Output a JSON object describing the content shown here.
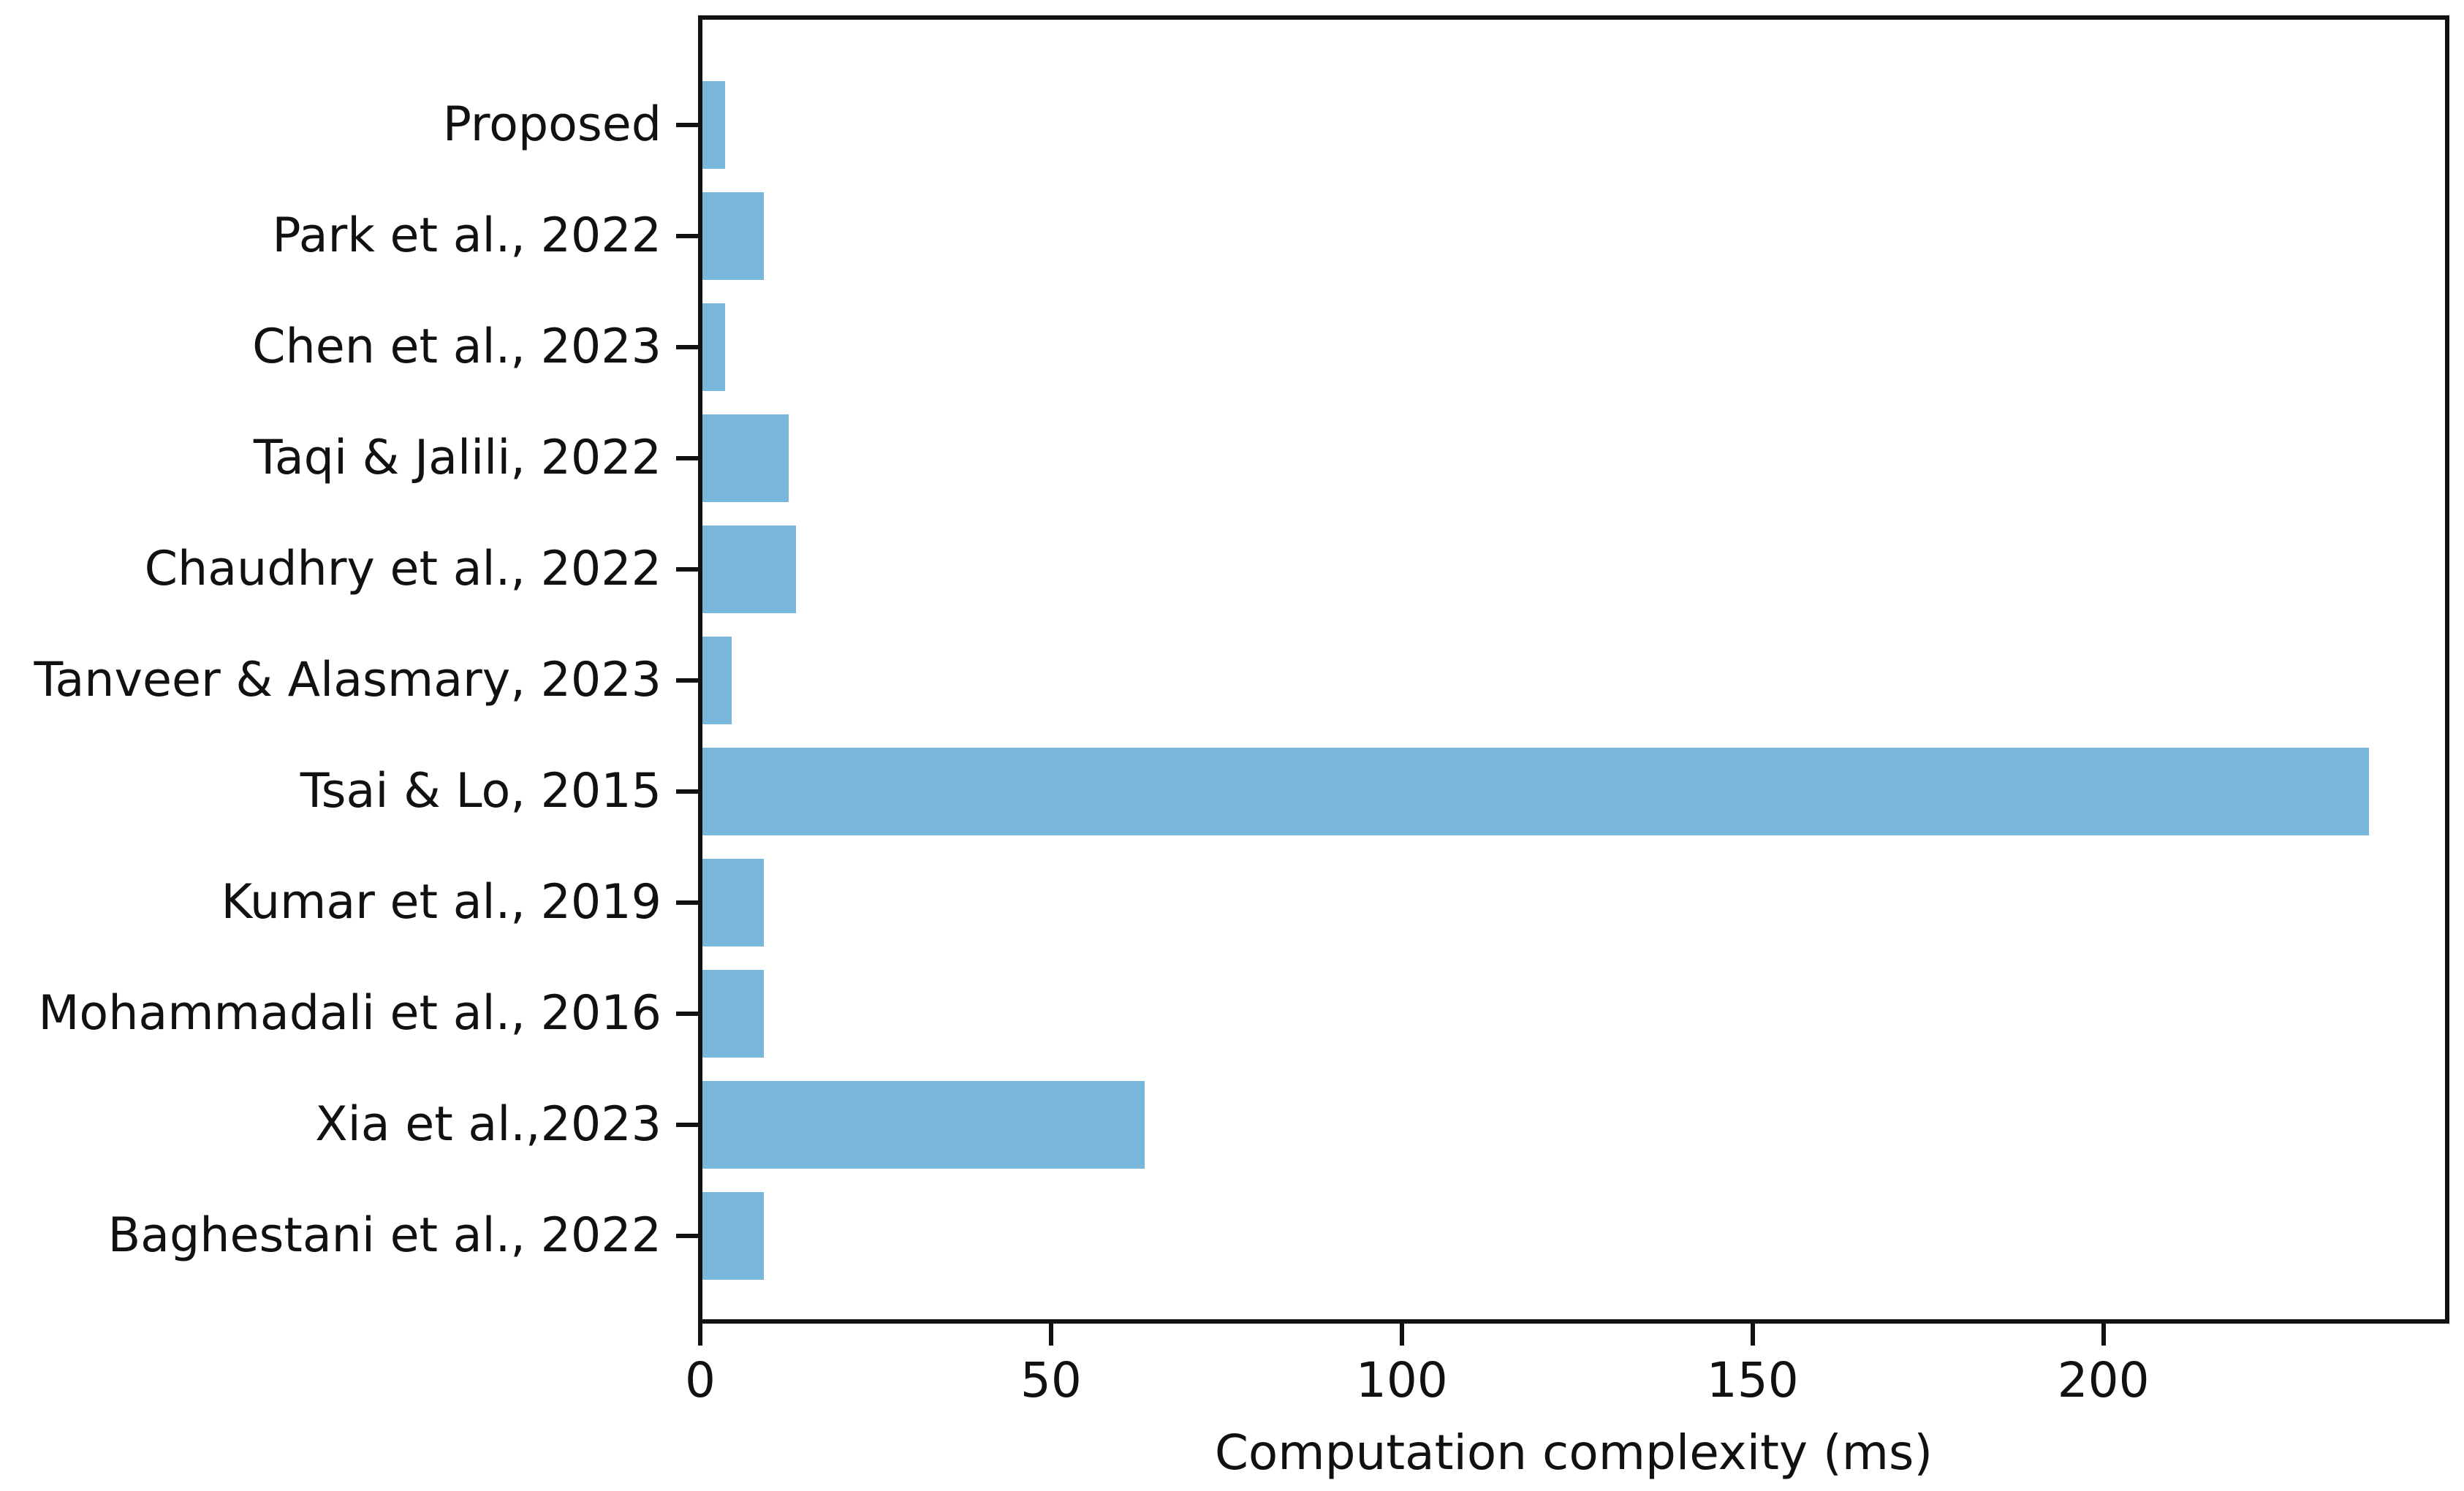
{
  "chart_data": {
    "type": "bar",
    "orientation": "horizontal",
    "title": "",
    "xlabel": "Computation complexity (ms)",
    "ylabel": "",
    "categories": [
      "Proposed",
      "Park et al., 2022",
      "Chen et al., 2023",
      "Taqi & Jalili, 2022",
      "Chaudhry et al., 2022",
      "Tanveer & Alasmary, 2023",
      "Tsai & Lo, 2015",
      "Kumar et al., 2019",
      "Mohammadali et al., 2016",
      "Xia et al.,2023",
      "Baghestani et al., 2022"
    ],
    "values": [
      3.2,
      8.8,
      3.2,
      12.3,
      13.3,
      4.2,
      237.5,
      8.8,
      8.8,
      63,
      8.8
    ],
    "x_ticks": [
      0,
      50,
      100,
      150,
      200
    ],
    "xlim": [
      0,
      249
    ],
    "grid": false,
    "legend_position": "none",
    "bar_color": "#78b7db",
    "axis_color": "#111111",
    "background_color": "#ffffff"
  }
}
